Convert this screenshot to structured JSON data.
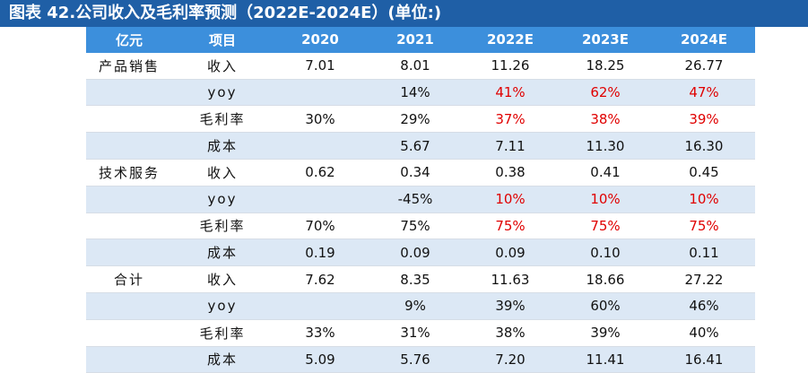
{
  "title": "图表 42.公司收入及毛利率预测（2022E-2024E）(单位:)",
  "header": [
    "亿元",
    "项目",
    "2020",
    "2021",
    "2022E",
    "2023E",
    "2024E"
  ],
  "rows": [
    {
      "cat": "产品销售",
      "item": "收入",
      "v": [
        "7.01",
        "8.01",
        "11.26",
        "18.25",
        "26.77"
      ],
      "red": [
        false,
        false,
        false,
        false,
        false
      ],
      "item_bold": false
    },
    {
      "cat": "",
      "item": "yoy",
      "v": [
        "",
        "14%",
        "41%",
        "62%",
        "47%"
      ],
      "red": [
        false,
        false,
        true,
        true,
        true
      ],
      "item_bold": true
    },
    {
      "cat": "",
      "item": "毛利率",
      "v": [
        "30%",
        "29%",
        "37%",
        "38%",
        "39%"
      ],
      "red": [
        false,
        false,
        true,
        true,
        true
      ],
      "item_bold": false
    },
    {
      "cat": "",
      "item": "成本",
      "v": [
        "",
        "5.67",
        "7.11",
        "11.30",
        "16.30"
      ],
      "red": [
        false,
        false,
        false,
        false,
        false
      ],
      "item_bold": false
    },
    {
      "cat": "技术服务",
      "item": "收入",
      "v": [
        "0.62",
        "0.34",
        "0.38",
        "0.41",
        "0.45"
      ],
      "red": [
        false,
        false,
        false,
        false,
        false
      ],
      "item_bold": false
    },
    {
      "cat": "",
      "item": "yoy",
      "v": [
        "",
        "-45%",
        "10%",
        "10%",
        "10%"
      ],
      "red": [
        false,
        false,
        true,
        true,
        true
      ],
      "item_bold": true
    },
    {
      "cat": "",
      "item": "毛利率",
      "v": [
        "70%",
        "75%",
        "75%",
        "75%",
        "75%"
      ],
      "red": [
        false,
        false,
        true,
        true,
        true
      ],
      "item_bold": false
    },
    {
      "cat": "",
      "item": "成本",
      "v": [
        "0.19",
        "0.09",
        "0.09",
        "0.10",
        "0.11"
      ],
      "red": [
        false,
        false,
        false,
        false,
        false
      ],
      "item_bold": false
    },
    {
      "cat": "合计",
      "item": "收入",
      "v": [
        "7.62",
        "8.35",
        "11.63",
        "18.66",
        "27.22"
      ],
      "red": [
        false,
        false,
        false,
        false,
        false
      ],
      "item_bold": false
    },
    {
      "cat": "",
      "item": "yoy",
      "v": [
        "",
        "9%",
        "39%",
        "60%",
        "46%"
      ],
      "red": [
        false,
        false,
        false,
        false,
        false
      ],
      "item_bold": true
    },
    {
      "cat": "",
      "item": "毛利率",
      "v": [
        "33%",
        "31%",
        "38%",
        "39%",
        "40%"
      ],
      "red": [
        false,
        false,
        false,
        false,
        false
      ],
      "item_bold": false
    },
    {
      "cat": "",
      "item": "成本",
      "v": [
        "5.09",
        "5.76",
        "7.20",
        "11.41",
        "16.41"
      ],
      "red": [
        false,
        false,
        false,
        false,
        false
      ],
      "item_bold": false
    }
  ],
  "colors": {
    "title_bg": "#1f5fa6",
    "header_bg": "#3c8fdc",
    "band": "#dce8f5",
    "forecast_red": "#e00000"
  }
}
